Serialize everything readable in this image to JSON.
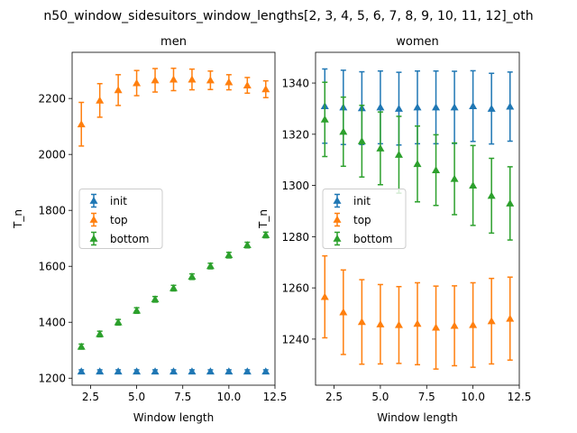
{
  "figure": {
    "suptitle": "n50_window_sidesuitors_window_lengths[2, 3, 4, 5, 6, 7, 8, 9, 10, 11, 12]_oth"
  },
  "chart_data": [
    {
      "type": "scatter",
      "title": "men",
      "xlabel": "Window length",
      "ylabel": "T_n",
      "xlim": [
        1.5,
        12.5
      ],
      "ylim": [
        1175,
        2365
      ],
      "xticks": [
        2.5,
        5.0,
        7.5,
        10.0,
        12.5
      ],
      "xtick_labels": [
        "2.5",
        "5.0",
        "7.5",
        "10.0",
        "12.5"
      ],
      "yticks": [
        1200,
        1400,
        1600,
        1800,
        2000,
        2200
      ],
      "ytick_labels": [
        "1200",
        "1400",
        "1600",
        "1800",
        "2000",
        "2200"
      ],
      "grid": false,
      "legend": "center-left",
      "x": [
        2,
        3,
        4,
        5,
        6,
        7,
        8,
        9,
        10,
        11,
        12
      ],
      "series": [
        {
          "name": "init",
          "color": "#1f77b4",
          "values": [
            1224,
            1224,
            1224,
            1224,
            1224,
            1224,
            1224,
            1224,
            1224,
            1224,
            1224
          ],
          "errors": [
            6,
            6,
            6,
            6,
            6,
            6,
            6,
            6,
            6,
            6,
            6
          ]
        },
        {
          "name": "top",
          "color": "#ff7f0e",
          "values": [
            2108,
            2193,
            2230,
            2255,
            2265,
            2268,
            2268,
            2265,
            2258,
            2247,
            2233
          ],
          "errors": [
            78,
            60,
            55,
            45,
            42,
            40,
            37,
            33,
            27,
            28,
            30
          ]
        },
        {
          "name": "bottom",
          "color": "#2ca02c",
          "values": [
            1313,
            1358,
            1400,
            1442,
            1482,
            1522,
            1563,
            1601,
            1640,
            1676,
            1712
          ],
          "errors": [
            9,
            10,
            10,
            10,
            10,
            10,
            10,
            10,
            10,
            10,
            10
          ]
        }
      ]
    },
    {
      "type": "scatter",
      "title": "women",
      "xlabel": "Window length",
      "ylabel": "T_n",
      "xlim": [
        1.5,
        12.5
      ],
      "ylim": [
        1222,
        1352
      ],
      "xticks": [
        2.5,
        5.0,
        7.5,
        10.0,
        12.5
      ],
      "xtick_labels": [
        "2.5",
        "5.0",
        "7.5",
        "10.0",
        "12.5"
      ],
      "yticks": [
        1240,
        1260,
        1280,
        1300,
        1320,
        1340
      ],
      "ytick_labels": [
        "1240",
        "1260",
        "1280",
        "1300",
        "1320",
        "1340"
      ],
      "grid": false,
      "legend": "center-left",
      "x": [
        2,
        3,
        4,
        5,
        6,
        7,
        8,
        9,
        10,
        11,
        12
      ],
      "series": [
        {
          "name": "init",
          "color": "#1f77b4",
          "values": [
            1331,
            1330.5,
            1330.2,
            1330.5,
            1330,
            1330.5,
            1330.5,
            1330.5,
            1331,
            1330,
            1330.8
          ],
          "errors": [
            14.5,
            14.5,
            14.2,
            14.2,
            14.2,
            14.2,
            14.2,
            14.1,
            13.8,
            13.8,
            13.5
          ]
        },
        {
          "name": "top",
          "color": "#ff7f0e",
          "values": [
            1256.5,
            1250.5,
            1246.7,
            1245.8,
            1245.5,
            1246,
            1244.5,
            1245.2,
            1245.5,
            1247,
            1248
          ],
          "errors": [
            16,
            16.5,
            16.5,
            15.5,
            15,
            16,
            16.2,
            15.6,
            16.5,
            16.7,
            16.2
          ]
        },
        {
          "name": "bottom",
          "color": "#2ca02c",
          "values": [
            1325.8,
            1321,
            1317.3,
            1314.5,
            1312,
            1308.4,
            1306,
            1302.6,
            1300,
            1296,
            1293
          ],
          "errors": [
            14.5,
            13.5,
            14,
            14.2,
            15,
            14.8,
            13.8,
            14,
            15.6,
            14.6,
            14.3
          ]
        }
      ]
    }
  ]
}
